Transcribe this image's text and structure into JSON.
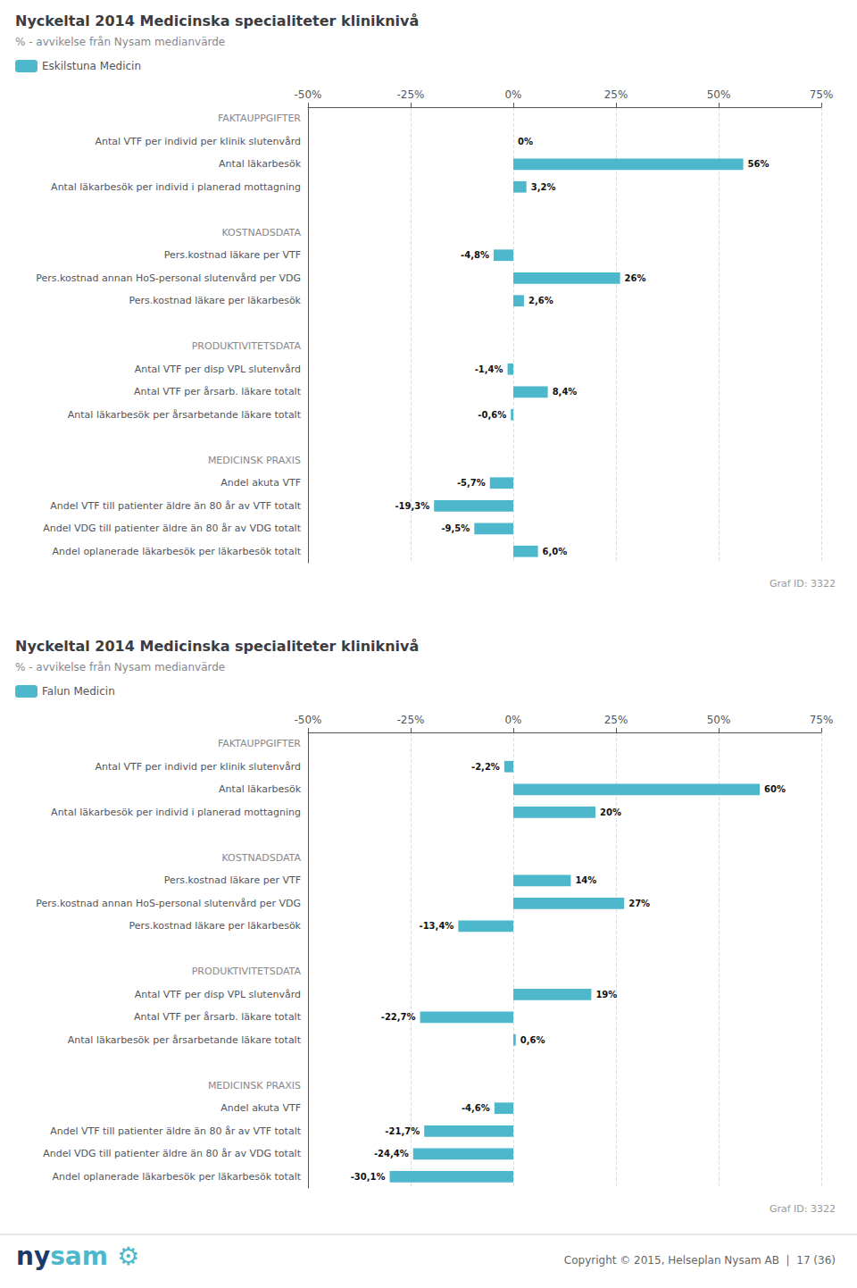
{
  "chart_data": [
    {
      "type": "bar",
      "orientation": "horizontal",
      "title": "Nyckeltal 2014 Medicinska specialiteter kliniknivå",
      "subtitle": "% - avvikelse från Nysam medianvärde",
      "categories": [
        "FAKTAUPPGIFTER",
        "Antal VTF per individ per klinik slutenvård",
        "Antal läkarbesök",
        "Antal läkarbesök per individ i planerad mottagning",
        null,
        "KOSTNADSDATA",
        "Pers.kostnad läkare per VTF",
        "Pers.kostnad annan HoS-personal slutenvård per VDG",
        "Pers.kostnad läkare per läkarbesök",
        null,
        "PRODUKTIVITETSDATA",
        "Antal VTF per disp VPL slutenvård",
        "Antal VTF per årsarb. läkare totalt",
        "Antal läkarbesök per årsarbetande läkare totalt",
        null,
        "MEDICINSK PRAXIS",
        "Andel akuta VTF",
        "Andel VTF till patienter äldre än 80 år av VTF totalt",
        "Andel VDG till patienter äldre än 80 år av VDG totalt",
        "Andel oplanerade läkarbesök per läkarbesök totalt"
      ],
      "series": [
        {
          "name": "Eskilstuna Medicin",
          "color": "#4db8cc",
          "values": [
            null,
            0.0,
            56.0,
            3.2,
            null,
            null,
            -4.8,
            26.0,
            2.6,
            null,
            null,
            -1.4,
            8.4,
            -0.6,
            null,
            null,
            -5.7,
            -19.3,
            -9.5,
            6.0
          ],
          "value_labels": [
            null,
            "0%",
            "56%",
            "3,2%",
            null,
            null,
            "-4,8%",
            "26%",
            "2,6%",
            null,
            null,
            "-1,4%",
            "8,4%",
            "-0,6%",
            null,
            null,
            "-5,7%",
            "-19,3%",
            "-9,5%",
            "6,0%"
          ]
        }
      ],
      "xlim": [
        -50,
        75
      ],
      "xticks": [
        {
          "value": -50,
          "label": "-50%"
        },
        {
          "value": -25,
          "label": "-25%"
        },
        {
          "value": 0,
          "label": "0%"
        },
        {
          "value": 25,
          "label": "25%"
        },
        {
          "value": 50,
          "label": "50%"
        },
        {
          "value": 75,
          "label": "75%"
        }
      ],
      "grid": true,
      "legend": "upper left",
      "data_labels": true,
      "annotations": [
        "Graf ID: 3322"
      ]
    },
    {
      "type": "bar",
      "orientation": "horizontal",
      "title": "Nyckeltal 2014 Medicinska specialiteter kliniknivå",
      "subtitle": "% - avvikelse från Nysam medianvärde",
      "categories": [
        "FAKTAUPPGIFTER",
        "Antal VTF per individ per klinik slutenvård",
        "Antal läkarbesök",
        "Antal läkarbesök per individ i planerad mottagning",
        null,
        "KOSTNADSDATA",
        "Pers.kostnad läkare per VTF",
        "Pers.kostnad annan HoS-personal slutenvård per VDG",
        "Pers.kostnad läkare per läkarbesök",
        null,
        "PRODUKTIVITETSDATA",
        "Antal VTF per disp VPL slutenvård",
        "Antal VTF per årsarb. läkare totalt",
        "Antal läkarbesök per årsarbetande läkare totalt",
        null,
        "MEDICINSK PRAXIS",
        "Andel akuta VTF",
        "Andel VTF till patienter äldre än 80 år av VTF totalt",
        "Andel VDG till patienter äldre än 80 år av VDG totalt",
        "Andel oplanerade läkarbesök per läkarbesök totalt"
      ],
      "series": [
        {
          "name": "Falun Medicin",
          "color": "#4db8cc",
          "values": [
            null,
            -2.2,
            60.0,
            20.0,
            null,
            null,
            14.0,
            27.0,
            -13.4,
            null,
            null,
            19.0,
            -22.7,
            0.6,
            null,
            null,
            -4.6,
            -21.7,
            -24.4,
            -30.1
          ],
          "value_labels": [
            null,
            "-2,2%",
            "60%",
            "20%",
            null,
            null,
            "14%",
            "27%",
            "-13,4%",
            null,
            null,
            "19%",
            "-22,7%",
            "0,6%",
            null,
            null,
            "-4,6%",
            "-21,7%",
            "-24,4%",
            "-30,1%"
          ]
        }
      ],
      "xlim": [
        -50,
        75
      ],
      "xticks": [
        {
          "value": -50,
          "label": "-50%"
        },
        {
          "value": -25,
          "label": "-25%"
        },
        {
          "value": 0,
          "label": "0%"
        },
        {
          "value": 25,
          "label": "25%"
        },
        {
          "value": 50,
          "label": "50%"
        },
        {
          "value": 75,
          "label": "75%"
        }
      ],
      "grid": true,
      "legend": "upper left",
      "data_labels": true,
      "annotations": [
        "Graf ID: 3322"
      ]
    }
  ],
  "annotations": [
    {
      "text": "ny",
      "color": "#1a3a6b"
    },
    {
      "text": "sam",
      "color": "#4db8cc"
    },
    {
      "text": "⚙",
      "color": "#4db8cc"
    },
    {
      "text": "Copyright © 2015, Helseplan Nysam AB  |  17 (36)"
    }
  ]
}
